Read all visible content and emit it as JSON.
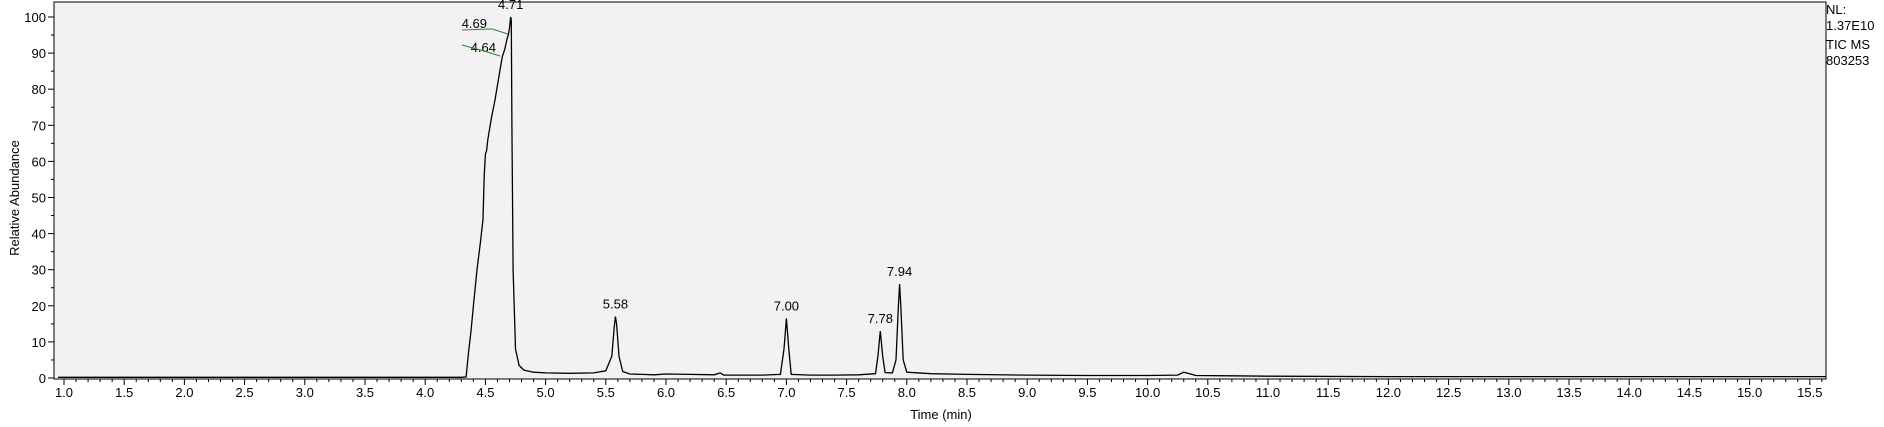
{
  "chart_data": {
    "type": "line",
    "xlabel": "Time (min)",
    "ylabel": "Relative Abundance",
    "xlim": [
      0.95,
      15.63
    ],
    "ylim": [
      0,
      100
    ],
    "grid": false,
    "background": "#f2f2f2",
    "line_color": "#000000",
    "annotation_line_color": "#2a8a2a",
    "x_ticks": [
      "1.0",
      "1.5",
      "2.0",
      "2.5",
      "3.0",
      "3.5",
      "4.0",
      "4.5",
      "5.0",
      "5.5",
      "6.0",
      "6.5",
      "7.0",
      "7.5",
      "8.0",
      "8.5",
      "9.0",
      "9.5",
      "10.0",
      "10.5",
      "11.0",
      "11.5",
      "12.0",
      "12.5",
      "13.0",
      "13.5",
      "14.0",
      "14.5",
      "15.0",
      "15.5"
    ],
    "y_ticks": [
      "0",
      "10",
      "20",
      "30",
      "40",
      "50",
      "60",
      "70",
      "80",
      "90",
      "100"
    ],
    "peak_labels": [
      {
        "text": "4.71",
        "x": 4.71,
        "y": 100
      },
      {
        "text": "4.69",
        "x": 4.69,
        "y": 97
      },
      {
        "text": "4.64",
        "x": 4.64,
        "y": 91
      },
      {
        "text": "5.58",
        "x": 5.58,
        "y": 17
      },
      {
        "text": "7.00",
        "x": 7.0,
        "y": 16.5
      },
      {
        "text": "7.78",
        "x": 7.78,
        "y": 13
      },
      {
        "text": "7.94",
        "x": 7.94,
        "y": 26
      }
    ],
    "series": [
      {
        "points": [
          [
            0.95,
            0.2
          ],
          [
            1.5,
            0.2
          ],
          [
            2.0,
            0.2
          ],
          [
            2.5,
            0.2
          ],
          [
            3.0,
            0.2
          ],
          [
            3.5,
            0.2
          ],
          [
            4.0,
            0.2
          ],
          [
            4.3,
            0.2
          ],
          [
            4.34,
            0.3
          ],
          [
            4.36,
            7
          ],
          [
            4.38,
            13
          ],
          [
            4.4,
            20
          ],
          [
            4.43,
            30
          ],
          [
            4.46,
            38
          ],
          [
            4.48,
            44
          ],
          [
            4.49,
            56
          ],
          [
            4.5,
            62
          ],
          [
            4.51,
            63
          ],
          [
            4.52,
            66
          ],
          [
            4.55,
            72
          ],
          [
            4.58,
            77
          ],
          [
            4.6,
            81
          ],
          [
            4.62,
            85
          ],
          [
            4.64,
            89
          ],
          [
            4.66,
            91
          ],
          [
            4.68,
            94
          ],
          [
            4.69,
            95
          ],
          [
            4.7,
            97
          ],
          [
            4.71,
            100
          ],
          [
            4.715,
            99
          ],
          [
            4.72,
            70
          ],
          [
            4.73,
            30
          ],
          [
            4.75,
            8
          ],
          [
            4.78,
            3.5
          ],
          [
            4.82,
            2.2
          ],
          [
            4.9,
            1.6
          ],
          [
            5.0,
            1.4
          ],
          [
            5.2,
            1.3
          ],
          [
            5.4,
            1.4
          ],
          [
            5.5,
            2
          ],
          [
            5.55,
            6
          ],
          [
            5.57,
            14
          ],
          [
            5.58,
            17
          ],
          [
            5.59,
            15
          ],
          [
            5.61,
            6
          ],
          [
            5.64,
            1.8
          ],
          [
            5.7,
            1.1
          ],
          [
            5.8,
            1.0
          ],
          [
            5.9,
            0.9
          ],
          [
            6.0,
            1.1
          ],
          [
            6.2,
            1.0
          ],
          [
            6.4,
            0.9
          ],
          [
            6.45,
            1.4
          ],
          [
            6.48,
            0.8
          ],
          [
            6.6,
            0.8
          ],
          [
            6.8,
            0.8
          ],
          [
            6.95,
            1.0
          ],
          [
            6.98,
            8
          ],
          [
            7.0,
            16.5
          ],
          [
            7.02,
            8
          ],
          [
            7.04,
            1.0
          ],
          [
            7.2,
            0.8
          ],
          [
            7.4,
            0.8
          ],
          [
            7.6,
            0.9
          ],
          [
            7.74,
            1.2
          ],
          [
            7.76,
            6
          ],
          [
            7.78,
            13
          ],
          [
            7.8,
            6
          ],
          [
            7.82,
            1.5
          ],
          [
            7.88,
            1.4
          ],
          [
            7.91,
            5
          ],
          [
            7.93,
            20
          ],
          [
            7.94,
            26
          ],
          [
            7.95,
            20
          ],
          [
            7.97,
            5
          ],
          [
            8.0,
            1.6
          ],
          [
            8.2,
            1.2
          ],
          [
            8.5,
            1.0
          ],
          [
            9.0,
            0.8
          ],
          [
            9.5,
            0.7
          ],
          [
            10.0,
            0.7
          ],
          [
            10.25,
            0.8
          ],
          [
            10.3,
            1.6
          ],
          [
            10.35,
            1.2
          ],
          [
            10.4,
            0.7
          ],
          [
            10.7,
            0.6
          ],
          [
            11.0,
            0.5
          ],
          [
            12.0,
            0.4
          ],
          [
            13.0,
            0.4
          ],
          [
            14.0,
            0.4
          ],
          [
            15.0,
            0.4
          ],
          [
            15.63,
            0.4
          ]
        ]
      }
    ]
  },
  "info": {
    "nl_label": "NL:",
    "nl_value": "1.37E10",
    "scan_filter": "TIC  MS",
    "file_id": "803253"
  }
}
